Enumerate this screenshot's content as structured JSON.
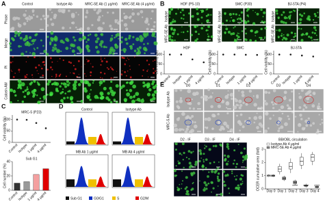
{
  "panels": {
    "A": {
      "letter": "A",
      "columns": [
        "Control",
        "Isotype Ab",
        "MRC-5E Ab (1 μg/ml)",
        "MRC-5E Ab (4 μg/ml)"
      ],
      "rows": [
        "Phase",
        "Merge",
        "PI",
        "Calcein AM"
      ]
    },
    "B": {
      "letter": "B",
      "groups": [
        {
          "title": "HDF (P5-10)",
          "rows": [
            "Isotype",
            "MRC-5E Ab"
          ]
        },
        {
          "title": "SMC (P30)",
          "rows": [
            "Isotype",
            "MRC-5E Ab"
          ]
        },
        {
          "title": "BJ-5TA (P4)",
          "rows": [
            "Isotype",
            "MRC-5E Ab"
          ]
        }
      ]
    },
    "C": {
      "letter": "C"
    },
    "D": {
      "letter": "D",
      "plots": [
        "Control",
        "Isotype Ab",
        "MB Ab 1 μg/ml",
        "MB Ab 4 μg/ml"
      ],
      "legend": [
        "Sub G1",
        "G0/G1",
        "S",
        "G2/M"
      ]
    },
    "E": {
      "letter": "E",
      "days": [
        "D0",
        "D1",
        "D2",
        "D3",
        "D4"
      ],
      "rows": [
        "Isotype Ab",
        "MRC-5 Ab"
      ],
      "if": [
        "D2 - IF",
        "D3 - IF",
        "D4 - IF"
      ]
    }
  },
  "chart_data": [
    {
      "type": "scatter",
      "title": "HDF",
      "ylabel": "Cell viability (%)",
      "categories": [
        "Control",
        "Isotype",
        "1 μg/ml",
        "4 μg/ml"
      ],
      "values": [
        100,
        100,
        75,
        60
      ],
      "color": "#222",
      "ylim": [
        0,
        120
      ],
      "yticks": [
        0,
        50,
        100
      ]
    },
    {
      "type": "scatter",
      "title": "SMC",
      "ylabel": "Cell viability (%)",
      "categories": [
        "Control",
        "Isotype",
        "1 μg/ml",
        "4 μg/ml"
      ],
      "values": [
        100,
        100,
        99,
        98
      ],
      "color": "#222",
      "ylim": [
        0,
        120
      ],
      "yticks": [
        0,
        50,
        100
      ]
    },
    {
      "type": "scatter",
      "title": "BJ-5TA",
      "ylabel": "Cell viability (%)",
      "categories": [
        "Control",
        "Isotype",
        "1 μg/ml",
        "4 μg/ml"
      ],
      "values": [
        100,
        100,
        95,
        90
      ],
      "color": "#222",
      "ylim": [
        0,
        120
      ],
      "yticks": [
        0,
        50,
        100
      ]
    },
    {
      "type": "scatter",
      "title": "MRC-5 (P23)",
      "ylabel": "Cell viability (%)",
      "categories": [
        "Control",
        "Isotype",
        "1 μg/ml",
        "4 μg/ml"
      ],
      "values": [
        100,
        99,
        85,
        62
      ],
      "color": "#222",
      "ylim": [
        0,
        120
      ],
      "yticks": [
        0,
        50,
        100
      ]
    },
    {
      "type": "bar",
      "title": "Sub G1",
      "ylabel": "Cell number (%)",
      "categories": [
        "Control",
        "Isotype",
        "1 μg/ml",
        "4 μg/ml"
      ],
      "values": [
        10,
        12,
        22,
        30
      ],
      "colors": [
        "#333",
        "#999",
        "#f4a0a0",
        "#e00000"
      ],
      "ylim": [
        0,
        40
      ],
      "yticks": [
        0,
        20,
        40
      ]
    },
    {
      "type": "box",
      "title": "BB/OBL circulation",
      "ylabel": "OCER cumulative area (fold)",
      "categories": [
        "Day 0",
        "Day 1",
        "Day 2",
        "Day 3",
        "Day 4"
      ],
      "ylim": [
        0,
        3
      ],
      "yticks": [
        0,
        1,
        2,
        3
      ],
      "series": [
        {
          "name": "Isotype Ab 4 μg/ml",
          "color": "#ffffff",
          "stats": [
            [
              0.9,
              0.95,
              1,
              1.05,
              1.1
            ],
            [
              1.1,
              1.3,
              1.5,
              1.7,
              1.9
            ],
            [
              1.2,
              1.5,
              1.7,
              2.0,
              2.3
            ],
            [
              1.5,
              1.8,
              2.1,
              2.4,
              2.7
            ],
            [
              1.8,
              2.1,
              2.4,
              2.6,
              2.8
            ]
          ]
        },
        {
          "name": "MRC-5E Ab 4 μg/ml",
          "color": "#888888",
          "stats": [
            [
              0.9,
              0.95,
              1,
              1.05,
              1.1
            ],
            [
              0.6,
              0.7,
              0.8,
              0.9,
              1.0
            ],
            [
              0.3,
              0.4,
              0.5,
              0.6,
              0.7
            ],
            [
              0.1,
              0.2,
              0.25,
              0.3,
              0.4
            ],
            [
              0.05,
              0.1,
              0.15,
              0.2,
              0.25
            ]
          ]
        }
      ],
      "annotations": [
        {
          "index": 2,
          "text": "****"
        },
        {
          "index": 3,
          "text": "****"
        },
        {
          "index": 4,
          "text": "****"
        }
      ]
    }
  ]
}
